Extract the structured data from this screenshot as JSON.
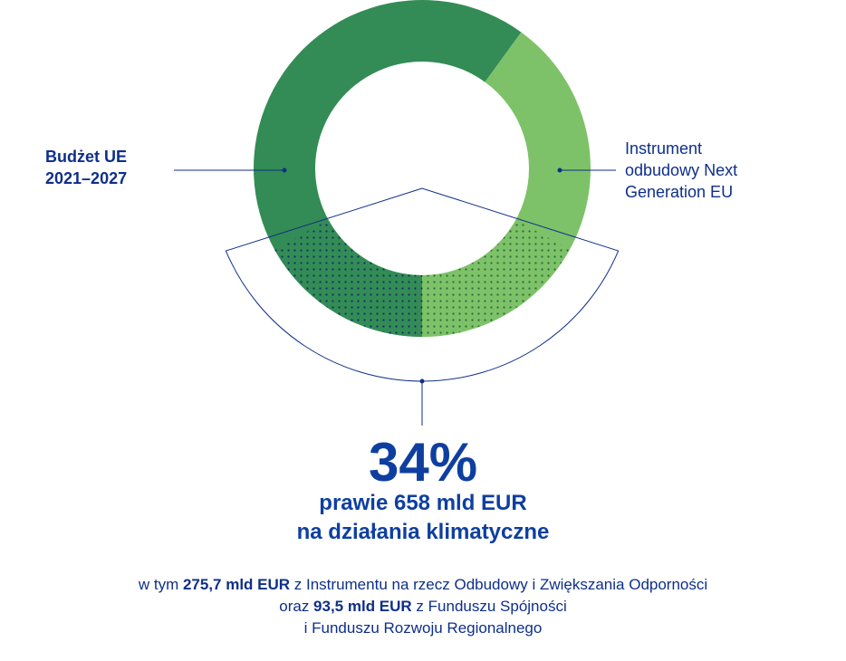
{
  "chart_data": {
    "type": "pie",
    "title": "",
    "slices": [
      {
        "name": "Budżet UE 2021–2027",
        "label_lines": [
          "Budżet UE",
          "2021–2027"
        ],
        "value": 1211,
        "color": "#338c55"
      },
      {
        "name": "Instrument odbudowy Next Generation EU",
        "label_lines": [
          "Instrument",
          "odbudowy Next",
          "Generation EU"
        ],
        "value": 807,
        "color": "#7dc268"
      }
    ],
    "highlight_share": 0.34,
    "highlight_label": "34%"
  },
  "text": {
    "percent": "34%",
    "headline_line1": "prawie 658 mld EUR",
    "headline_line2": "na działania klimatyczne",
    "note_line1_pre": "w tym ",
    "note_line1_bold": "275,7 mld EUR",
    "note_line1_post": " z Instrumentu na rzecz Odbudowy i Zwiększania Odporności",
    "note_line2_pre": "oraz ",
    "note_line2_bold": "93,5 mld EUR",
    "note_line2_post": " z Funduszu Spójności",
    "note_line3": "i Funduszu Rozwoju Regionalnego"
  },
  "colors": {
    "navy": "#0e2f8a",
    "accent_blue": "#0e3fa0",
    "dark_green": "#338c55",
    "light_green": "#7dc268"
  }
}
